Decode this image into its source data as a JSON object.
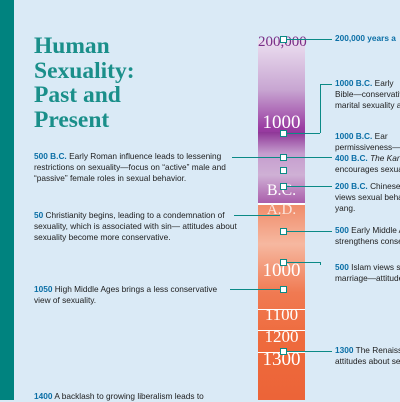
{
  "title_lines": [
    "Human",
    "Sexuality:",
    "Past and",
    "Present"
  ],
  "timeline_labels": {
    "top": "200,000",
    "y1000bc": "1000",
    "bc": "B.C.",
    "ad": "A.D.",
    "y1000": "1000",
    "y1100": "1100",
    "y1200": "1200",
    "y1300": "1300"
  },
  "left_entries": [
    {
      "year": "500 B.C.",
      "text": "Early Roman influence leads to lessening restrictions on sexuality—focus on “active” male and “passive” female roles in sexual behavior."
    },
    {
      "year": "50",
      "text": "Christianity begins, leading to a condemnation of sexuality, which is associated with sin— attitudes about sexuality become more conservative."
    },
    {
      "year": "1050",
      "text": "High Middle Ages brings a less conservative view of sexuality."
    },
    {
      "year": "1400",
      "text": "A backlash to growing liberalism leads to"
    }
  ],
  "right_entries": [
    {
      "year": "200,000 years a",
      "text": ""
    },
    {
      "year": "1000 B.C.",
      "text": "Early",
      "lines": [
        "Bible—conservativ",
        "marital sexuality a"
      ]
    },
    {
      "year": "1000 B.C.",
      "text": "Ear",
      "lines": [
        "permissiveness—m"
      ]
    },
    {
      "year": "400 B.C.",
      "text": "The Kar",
      "lines": [
        "encourages sexual"
      ]
    },
    {
      "year": "200 B.C.",
      "text": "Chinese",
      "lines": [
        "views sexual behav",
        "yang."
      ]
    },
    {
      "year": "500",
      "text": "Early Middle A",
      "lines": [
        "strengthens conse"
      ]
    },
    {
      "year": "500",
      "text": "Islam views s",
      "lines": [
        "marriage—attitude"
      ]
    },
    {
      "year": "1300",
      "text": "The Renaiss",
      "lines": [
        "attitudes about sex"
      ]
    }
  ],
  "colors": {
    "teal": "#1a8f8a",
    "year_blue": "#0b6fa6",
    "purple": "#7a2d86",
    "orange": "#ee6a3c",
    "background": "#daeaf6"
  }
}
